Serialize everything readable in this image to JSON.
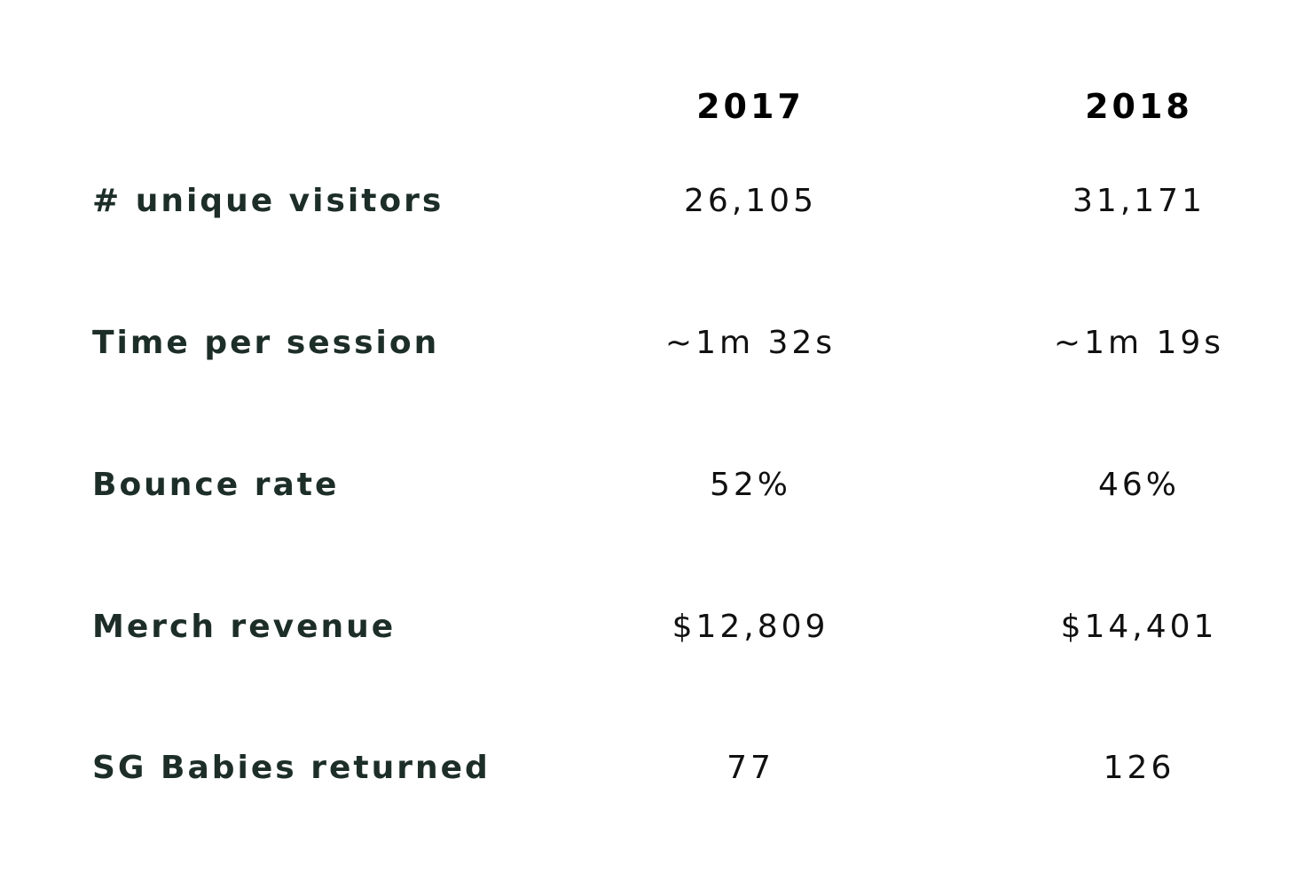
{
  "chart_data": {
    "type": "table",
    "columns": [
      "2017",
      "2018"
    ],
    "rows": [
      {
        "label": "# unique visitors",
        "values": [
          "26,105",
          "31,171"
        ]
      },
      {
        "label": "Time per session",
        "values": [
          "~1m 32s",
          "~1m 19s"
        ]
      },
      {
        "label": "Bounce rate",
        "values": [
          "52%",
          "46%"
        ]
      },
      {
        "label": "Merch revenue",
        "values": [
          "$12,809",
          "$14,401"
        ]
      },
      {
        "label": "SG Babies returned",
        "values": [
          "77",
          "126"
        ]
      }
    ]
  }
}
